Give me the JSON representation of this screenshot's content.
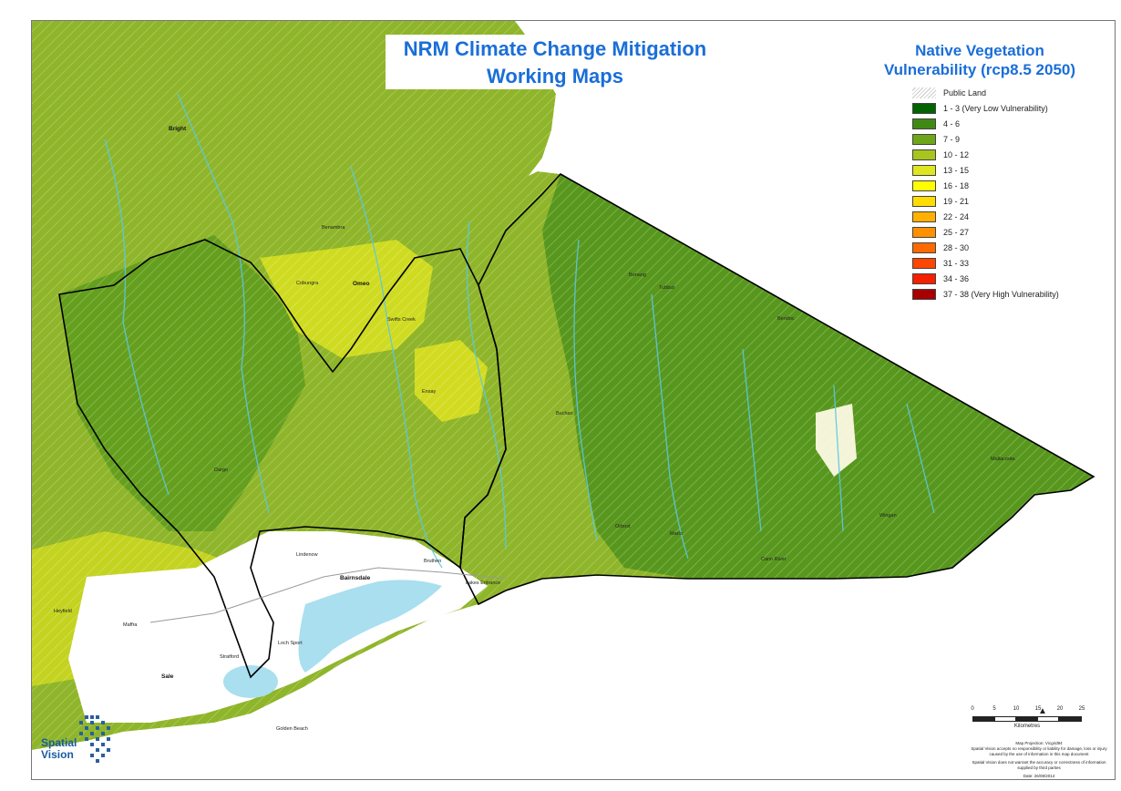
{
  "title": {
    "line1": "NRM Climate Change Mitigation",
    "line2": "Working Maps"
  },
  "legend": {
    "title_line1": "Native Vegetation",
    "title_line2": "Vulnerability (rcp8.5 2050)",
    "public_land_label": "Public Land",
    "items": [
      {
        "label": "1 - 3 (Very Low Vulnerability)",
        "color": "#006400"
      },
      {
        "label": "4 - 6",
        "color": "#3f8a14"
      },
      {
        "label": "7 - 9",
        "color": "#6ea619"
      },
      {
        "label": "10 - 12",
        "color": "#a8c51d"
      },
      {
        "label": "13 - 15",
        "color": "#dfe51e"
      },
      {
        "label": "16 - 18",
        "color": "#ffff00"
      },
      {
        "label": "19 - 21",
        "color": "#ffdd00"
      },
      {
        "label": "22 - 24",
        "color": "#ffb000"
      },
      {
        "label": "25 - 27",
        "color": "#ff9000"
      },
      {
        "label": "28 - 30",
        "color": "#ff6a00"
      },
      {
        "label": "31 - 33",
        "color": "#ff4600"
      },
      {
        "label": "34 - 36",
        "color": "#f42000"
      },
      {
        "label": "37 - 38 (Very High Vulnerability)",
        "color": "#a80000"
      }
    ]
  },
  "places": {
    "bright": "Bright",
    "omeo": "Omeo",
    "bairnsdale": "Bairnsdale",
    "sale": "Sale",
    "orbost": "Orbost",
    "lakes_entrance": "Lakes Entrance",
    "golden_beach": "Golden Beach",
    "bendoc": "Bendoc",
    "ensay": "Ensay",
    "buchan": "Buchan",
    "benambra": "Benambra",
    "cobungra": "Cobungra",
    "swifts_creek": "Swifts Creek",
    "dargo": "Dargo",
    "stratford": "Stratford",
    "maffra": "Maffra",
    "heyfield": "Heyfield",
    "lindenow": "Lindenow",
    "bruthen": "Bruthen",
    "marlo": "Marlo",
    "cann_river": "Cann River",
    "mallacoota": "Mallacoota",
    "bonang": "Bonang",
    "tubbut": "Tubbut",
    "wingan": "Wingan",
    "loch_sport": "Loch Sport"
  },
  "scale": {
    "ticks": [
      "0",
      "5",
      "10",
      "15",
      "20",
      "25"
    ],
    "unit": "Kilometres"
  },
  "projection": "Map Projection: Vicgrid94",
  "disclaimer1": "Spatial Vision accepts no responsibility or liability for damage, loss or injury caused by the use of information in this map document",
  "disclaimer2": "Spatial Vision does not warrant the accuracy or correctness of information supplied by third parties",
  "date": "Date: 26/08/2014",
  "brand": {
    "line1": "Spatial",
    "line2": "Vision"
  },
  "colors": {
    "base_green": "#8fb52a",
    "dark_green": "#3f8a14",
    "yellow_patch": "#e8e81e",
    "water": "#a9dfee",
    "river": "#5bc8e6",
    "title": "#1a6ed8"
  }
}
